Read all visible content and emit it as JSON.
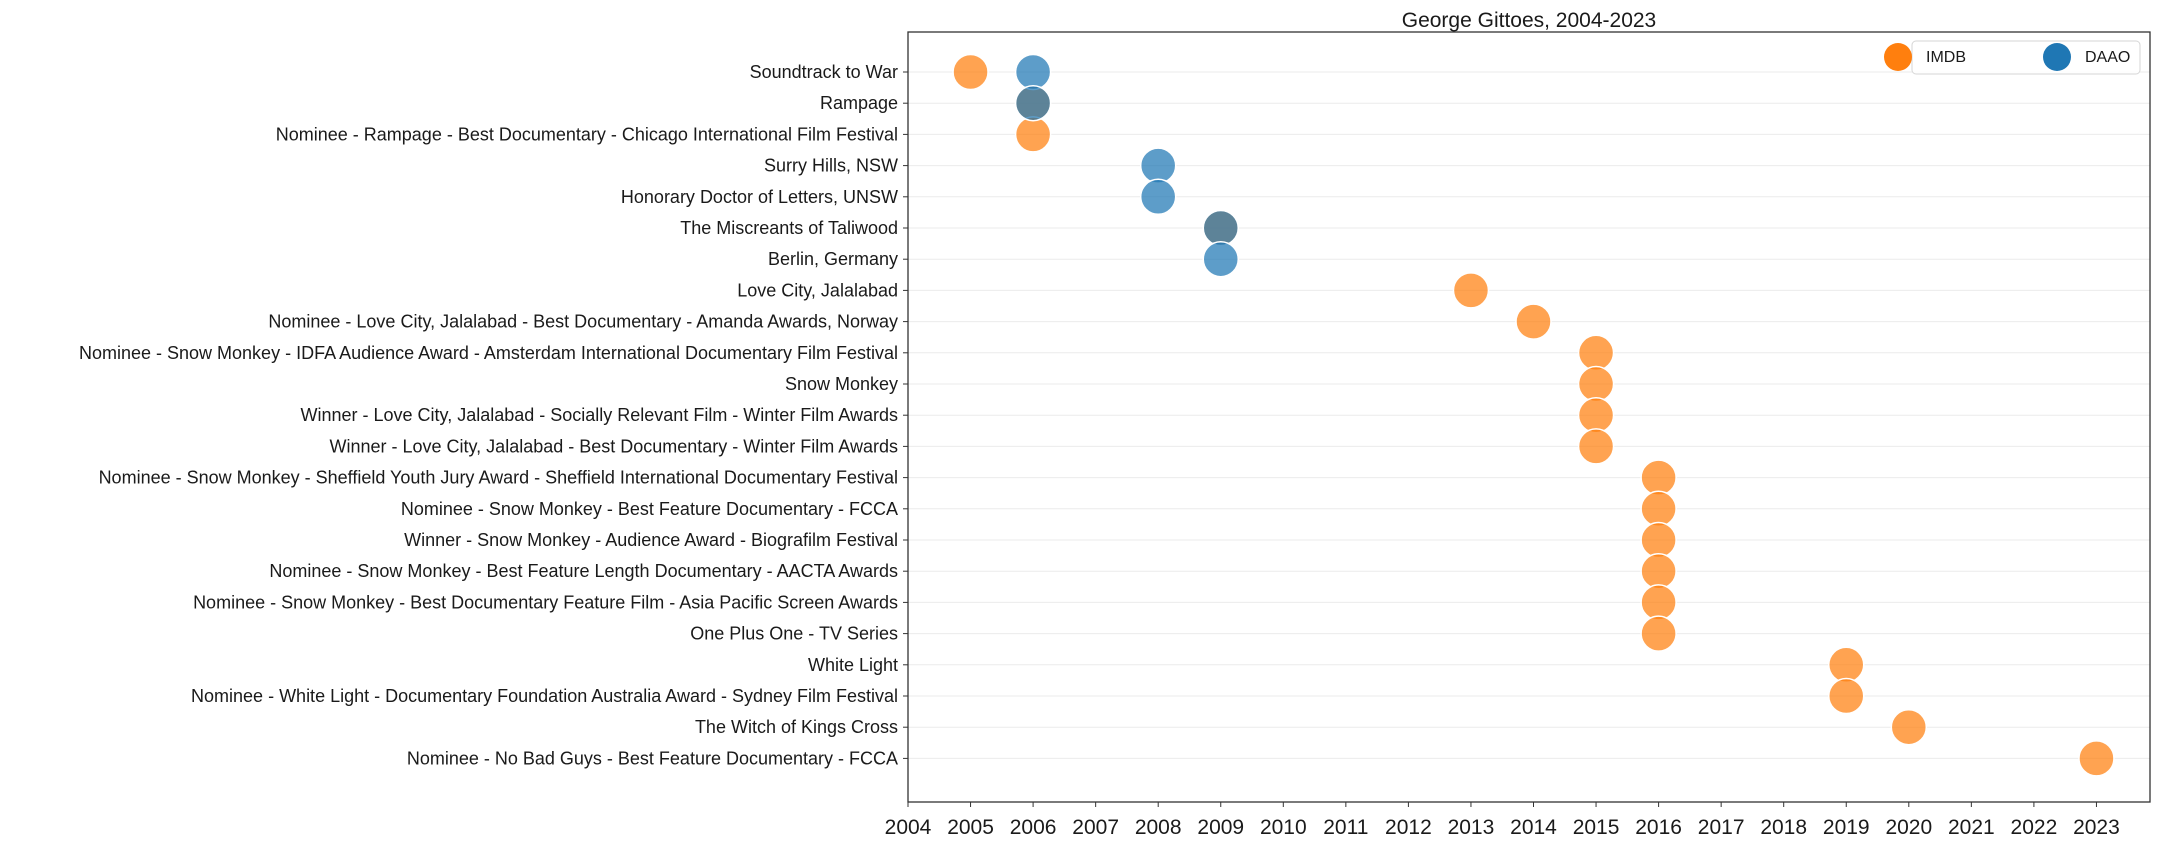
{
  "chart_data": {
    "type": "scatter",
    "title": "George Gittoes, 2004-2023",
    "xlabel": "",
    "ylabel": "",
    "xlim": [
      2004,
      2023.9
    ],
    "x_ticks": [
      2004,
      2005,
      2006,
      2007,
      2008,
      2009,
      2010,
      2011,
      2012,
      2013,
      2014,
      2015,
      2016,
      2017,
      2018,
      2019,
      2020,
      2021,
      2022,
      2023
    ],
    "grid": "horizontal",
    "legend_position": "top-right",
    "categories": [
      "Soundtrack to War",
      "Rampage",
      "Nominee - Rampage - Best Documentary - Chicago International Film Festival",
      "Surry Hills, NSW",
      "Honorary Doctor of Letters, UNSW",
      "The Miscreants of Taliwood",
      "Berlin, Germany",
      "Love City, Jalalabad",
      "Nominee - Love City, Jalalabad - Best Documentary - Amanda Awards, Norway",
      "Nominee - Snow Monkey - IDFA Audience Award - Amsterdam International Documentary Film Festival",
      "Snow Monkey",
      "Winner - Love City, Jalalabad - Socially Relevant Film - Winter Film Awards",
      "Winner - Love City, Jalalabad - Best Documentary - Winter Film Awards",
      "Nominee - Snow Monkey - Sheffield Youth Jury Award - Sheffield International Documentary Festival",
      "Nominee - Snow Monkey - Best Feature Documentary - FCCA",
      "Winner - Snow Monkey - Audience Award - Biografilm Festival",
      "Nominee - Snow Monkey - Best Feature Length Documentary - AACTA Awards",
      "Nominee - Snow Monkey - Best Documentary Feature Film - Asia Pacific Screen Awards",
      "One Plus One - TV Series",
      "White Light",
      "Nominee - White Light - Documentary Foundation Australia Award - Sydney Film Festival",
      "The Witch of Kings Cross",
      "Nominee - No Bad Guys - Best Feature Documentary - FCCA"
    ],
    "series": [
      {
        "name": "IMDB",
        "color": "#ff7f0e",
        "points": [
          {
            "category": "Soundtrack to War",
            "x": 2005
          },
          {
            "category": "Rampage",
            "x": 2006
          },
          {
            "category": "Nominee - Rampage - Best Documentary - Chicago International Film Festival",
            "x": 2006
          },
          {
            "category": "The Miscreants of Taliwood",
            "x": 2009
          },
          {
            "category": "Love City, Jalalabad",
            "x": 2013
          },
          {
            "category": "Nominee - Love City, Jalalabad - Best Documentary - Amanda Awards, Norway",
            "x": 2014
          },
          {
            "category": "Nominee - Snow Monkey - IDFA Audience Award - Amsterdam International Documentary Film Festival",
            "x": 2015
          },
          {
            "category": "Snow Monkey",
            "x": 2015
          },
          {
            "category": "Winner - Love City, Jalalabad - Socially Relevant Film - Winter Film Awards",
            "x": 2015
          },
          {
            "category": "Winner - Love City, Jalalabad - Best Documentary - Winter Film Awards",
            "x": 2015
          },
          {
            "category": "Nominee - Snow Monkey - Sheffield Youth Jury Award - Sheffield International Documentary Festival",
            "x": 2016
          },
          {
            "category": "Nominee - Snow Monkey - Best Feature Documentary - FCCA",
            "x": 2016
          },
          {
            "category": "Winner - Snow Monkey - Audience Award - Biografilm Festival",
            "x": 2016
          },
          {
            "category": "Nominee - Snow Monkey - Best Feature Length Documentary - AACTA Awards",
            "x": 2016
          },
          {
            "category": "Nominee - Snow Monkey - Best Documentary Feature Film - Asia Pacific Screen Awards",
            "x": 2016
          },
          {
            "category": "One Plus One - TV Series",
            "x": 2016
          },
          {
            "category": "White Light",
            "x": 2019
          },
          {
            "category": "Nominee - White Light - Documentary Foundation Australia Award - Sydney Film Festival",
            "x": 2019
          },
          {
            "category": "The Witch of Kings Cross",
            "x": 2020
          },
          {
            "category": "Nominee - No Bad Guys - Best Feature Documentary - FCCA",
            "x": 2023
          }
        ]
      },
      {
        "name": "DAAO",
        "color": "#1f77b4",
        "points": [
          {
            "category": "Soundtrack to War",
            "x": 2006
          },
          {
            "category": "Rampage",
            "x": 2006
          },
          {
            "category": "Surry Hills, NSW",
            "x": 2008
          },
          {
            "category": "Honorary Doctor of Letters, UNSW",
            "x": 2008
          },
          {
            "category": "The Miscreants of Taliwood",
            "x": 2009
          },
          {
            "category": "Berlin, Germany",
            "x": 2009
          }
        ]
      }
    ]
  }
}
